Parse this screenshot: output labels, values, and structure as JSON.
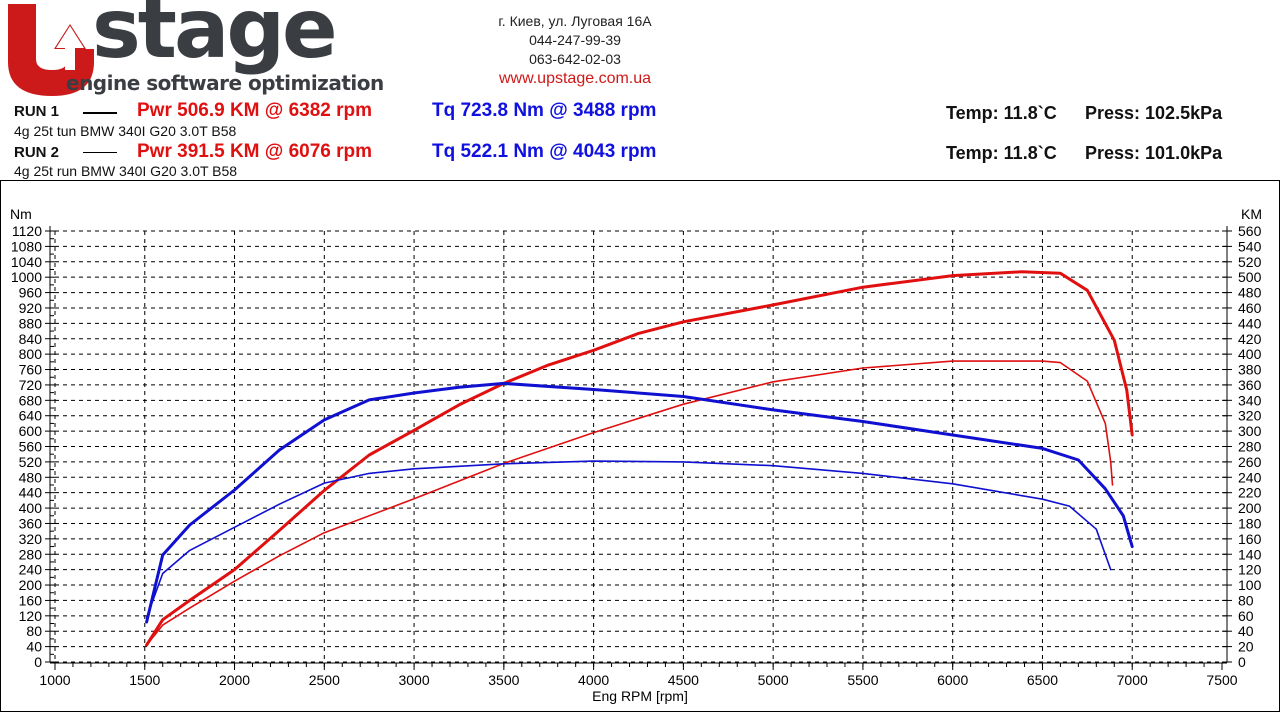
{
  "logo": {
    "brand": "UPstage",
    "tagline": "engine software optimization"
  },
  "contact": {
    "address": "г. Киев, ул. Луговая 16А",
    "phone1": "044-247-99-39",
    "phone2": "063-642-02-03",
    "website": "www.upstage.com.ua"
  },
  "runs": [
    {
      "label": "RUN 1",
      "pwr": "Pwr  506.9 KM @ 6382 rpm",
      "tq": "Tq 723.8 Nm @ 3488 rpm",
      "description": "4g 25t tun BMW 340I G20 3.0T B58",
      "temp": "Temp: 11.8`C",
      "press": "Press: 102.5kPa"
    },
    {
      "label": "RUN 2",
      "pwr": "Pwr  391.5 KM @ 6076 rpm",
      "tq": "Tq 522.1 Nm @ 4043 rpm",
      "description": "4g 25t run BMW 340I G20 3.0T B58",
      "temp": "Temp: 11.8`C",
      "press": "Press: 101.0kPa"
    }
  ],
  "chart_data": {
    "type": "line",
    "xlabel": "Eng RPM [rpm]",
    "ylabel_left": "Nm",
    "ylabel_right": "KM",
    "xlim": [
      1000,
      7500
    ],
    "xticks": [
      1000,
      1500,
      2000,
      2500,
      3000,
      3500,
      4000,
      4500,
      5000,
      5500,
      6000,
      6500,
      7000,
      7500
    ],
    "ylim_left": [
      0,
      1120
    ],
    "ylim_right": [
      0,
      560
    ],
    "grid": true,
    "colors": {
      "power": "#e01010",
      "torque": "#1010d0"
    },
    "series": [
      {
        "run": "RUN 1",
        "quantity": "power",
        "axis": "right",
        "width": 3,
        "x": [
          1510,
          1600,
          1750,
          2000,
          2250,
          2500,
          2750,
          3000,
          3250,
          3500,
          3750,
          4000,
          4250,
          4500,
          5000,
          5500,
          6000,
          6382,
          6600,
          6750,
          6900,
          6970,
          7000
        ],
        "y": [
          22,
          55,
          80,
          120,
          171,
          223,
          269,
          301,
          334,
          362,
          386,
          405,
          427,
          442,
          464,
          487,
          502,
          507,
          505,
          483,
          418,
          353,
          295
        ]
      },
      {
        "run": "RUN 2",
        "quantity": "power",
        "axis": "right",
        "width": 1.6,
        "x": [
          1510,
          1600,
          1750,
          2000,
          2250,
          2500,
          3000,
          3500,
          4000,
          4500,
          5000,
          5500,
          6000,
          6500,
          6600,
          6750,
          6850,
          6880,
          6890
        ],
        "y": [
          22,
          48,
          70,
          105,
          138,
          168,
          212,
          258,
          298,
          335,
          364,
          382,
          391,
          391,
          389,
          365,
          310,
          260,
          230
        ]
      },
      {
        "run": "RUN 1",
        "quantity": "torque",
        "axis": "left",
        "width": 3,
        "x": [
          1510,
          1600,
          1750,
          2000,
          2250,
          2500,
          2750,
          3000,
          3250,
          3500,
          4000,
          4500,
          5000,
          5500,
          6000,
          6500,
          6700,
          6850,
          6950,
          7000
        ],
        "y": [
          104,
          278,
          356,
          447,
          551,
          629,
          681,
          699,
          714,
          724,
          708,
          690,
          655,
          625,
          590,
          555,
          525,
          450,
          380,
          300
        ]
      },
      {
        "run": "RUN 2",
        "quantity": "torque",
        "axis": "left",
        "width": 1.6,
        "x": [
          1510,
          1600,
          1750,
          2000,
          2250,
          2500,
          2750,
          3000,
          3500,
          4000,
          4500,
          5000,
          5500,
          6000,
          6500,
          6650,
          6800,
          6880
        ],
        "y": [
          115,
          230,
          290,
          350,
          410,
          465,
          490,
          502,
          515,
          522,
          520,
          510,
          490,
          463,
          423,
          405,
          345,
          240
        ]
      }
    ]
  }
}
